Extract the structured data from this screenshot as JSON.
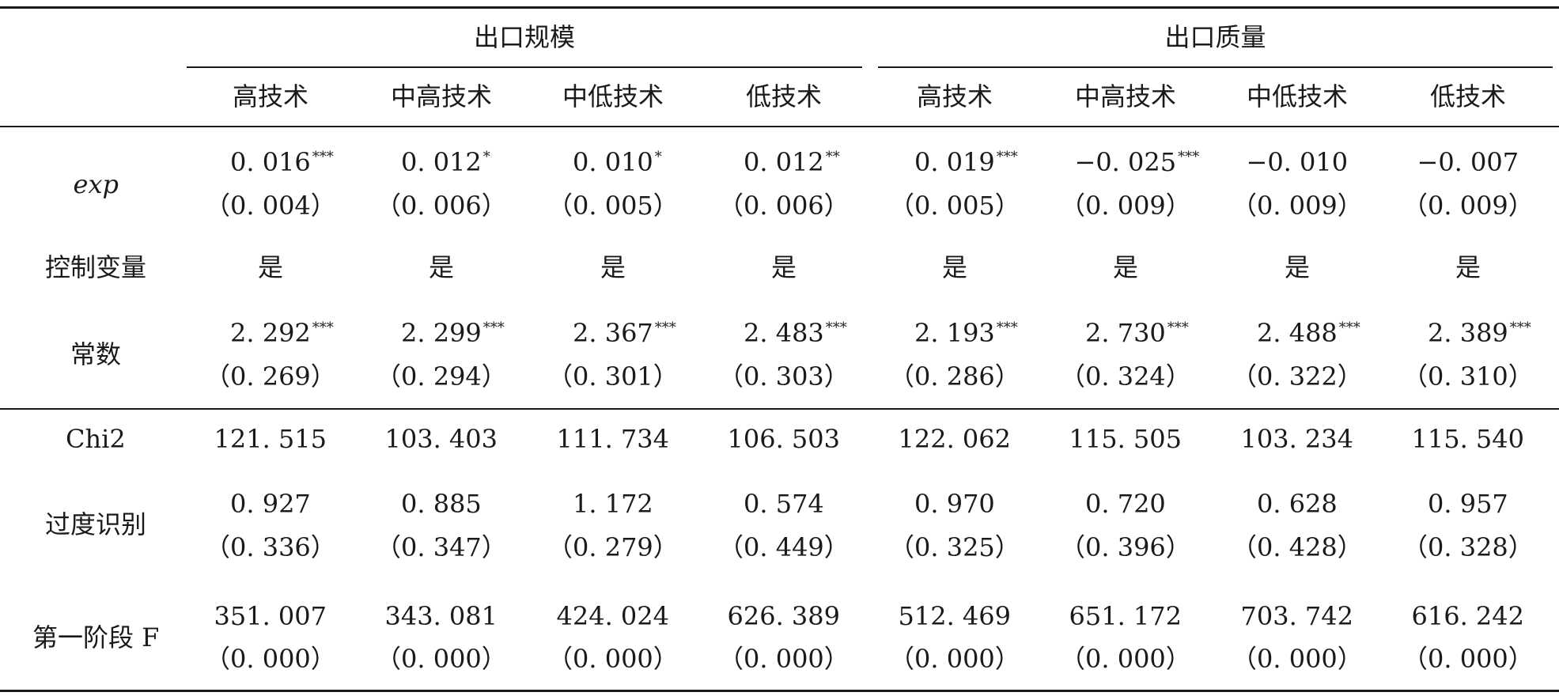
{
  "table": {
    "groups": [
      "出口规模",
      "出口质量"
    ],
    "columns": [
      "高技术",
      "中高技术",
      "中低技术",
      "低技术",
      "高技术",
      "中高技术",
      "中低技术",
      "低技术"
    ],
    "rows": [
      {
        "label": "exp",
        "italic": true,
        "values": [
          {
            "v": "0. 016",
            "sig": "***"
          },
          {
            "v": "0. 012",
            "sig": "*"
          },
          {
            "v": "0. 010",
            "sig": "*"
          },
          {
            "v": "0. 012",
            "sig": "**"
          },
          {
            "v": "0. 019",
            "sig": "***"
          },
          {
            "v": "−0. 025",
            "sig": "***"
          },
          {
            "v": "−0. 010",
            "sig": ""
          },
          {
            "v": "−0. 007",
            "sig": ""
          }
        ],
        "se": [
          "（0. 004）",
          "（0. 006）",
          "（0. 005）",
          "（0. 006）",
          "（0. 005）",
          "（0. 009）",
          "（0. 009）",
          "（0. 009）"
        ]
      },
      {
        "label": "控制变量",
        "values": [
          {
            "v": "是",
            "sig": ""
          },
          {
            "v": "是",
            "sig": ""
          },
          {
            "v": "是",
            "sig": ""
          },
          {
            "v": "是",
            "sig": ""
          },
          {
            "v": "是",
            "sig": ""
          },
          {
            "v": "是",
            "sig": ""
          },
          {
            "v": "是",
            "sig": ""
          },
          {
            "v": "是",
            "sig": ""
          }
        ]
      },
      {
        "label": "常数",
        "values": [
          {
            "v": "2. 292",
            "sig": "***"
          },
          {
            "v": "2. 299",
            "sig": "***"
          },
          {
            "v": "2. 367",
            "sig": "***"
          },
          {
            "v": "2. 483",
            "sig": "***"
          },
          {
            "v": "2. 193",
            "sig": "***"
          },
          {
            "v": "2. 730",
            "sig": "***"
          },
          {
            "v": "2. 488",
            "sig": "***"
          },
          {
            "v": "2. 389",
            "sig": "***"
          }
        ],
        "se": [
          "（0. 269）",
          "（0. 294）",
          "（0. 301）",
          "（0. 303）",
          "（0. 286）",
          "（0. 324）",
          "（0. 322）",
          "（0. 310）"
        ]
      },
      {
        "label": "Chi2",
        "values": [
          {
            "v": "121. 515",
            "sig": ""
          },
          {
            "v": "103. 403",
            "sig": ""
          },
          {
            "v": "111. 734",
            "sig": ""
          },
          {
            "v": "106. 503",
            "sig": ""
          },
          {
            "v": "122. 062",
            "sig": ""
          },
          {
            "v": "115. 505",
            "sig": ""
          },
          {
            "v": "103. 234",
            "sig": ""
          },
          {
            "v": "115. 540",
            "sig": ""
          }
        ]
      },
      {
        "label": "过度识别",
        "values": [
          {
            "v": "0. 927",
            "sig": ""
          },
          {
            "v": "0. 885",
            "sig": ""
          },
          {
            "v": "1. 172",
            "sig": ""
          },
          {
            "v": "0. 574",
            "sig": ""
          },
          {
            "v": "0. 970",
            "sig": ""
          },
          {
            "v": "0. 720",
            "sig": ""
          },
          {
            "v": "0. 628",
            "sig": ""
          },
          {
            "v": "0. 957",
            "sig": ""
          }
        ],
        "se": [
          "（0. 336）",
          "（0. 347）",
          "（0. 279）",
          "（0. 449）",
          "（0. 325）",
          "（0. 396）",
          "（0. 428）",
          "（0. 328）"
        ]
      },
      {
        "label": "第一阶段 F",
        "values": [
          {
            "v": "351. 007",
            "sig": ""
          },
          {
            "v": "343. 081",
            "sig": ""
          },
          {
            "v": "424. 024",
            "sig": ""
          },
          {
            "v": "626. 389",
            "sig": ""
          },
          {
            "v": "512. 469",
            "sig": ""
          },
          {
            "v": "651. 172",
            "sig": ""
          },
          {
            "v": "703. 742",
            "sig": ""
          },
          {
            "v": "616. 242",
            "sig": ""
          }
        ],
        "se": [
          "（0. 000）",
          "（0. 000）",
          "（0. 000）",
          "（0. 000）",
          "（0. 000）",
          "（0. 000）",
          "（0. 000）",
          "（0. 000）"
        ]
      }
    ]
  }
}
